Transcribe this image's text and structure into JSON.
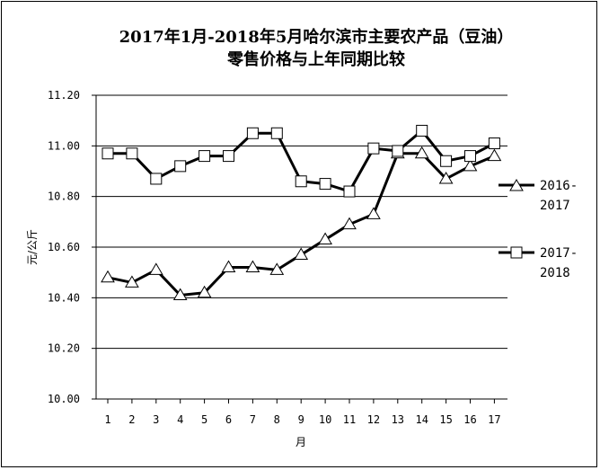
{
  "chart_data": {
    "type": "line",
    "title_line1": "2017年1月-2018年5月哈尔滨市主要农产品（豆油）",
    "title_line2": "零售价格与上年同期比较",
    "xlabel": "月",
    "ylabel": "元/公斤",
    "ylim": [
      10.0,
      11.2
    ],
    "yticks": [
      "10.00",
      "10.20",
      "10.40",
      "10.60",
      "10.80",
      "11.00",
      "11.20"
    ],
    "categories": [
      "1",
      "2",
      "3",
      "4",
      "5",
      "6",
      "7",
      "8",
      "9",
      "10",
      "11",
      "12",
      "13",
      "14",
      "15",
      "16",
      "17"
    ],
    "grid": true,
    "legend_position": "right",
    "series": [
      {
        "name_line1": "2016-",
        "name_line2": "2017",
        "marker": "triangle",
        "values": [
          10.48,
          10.46,
          10.51,
          10.41,
          10.42,
          10.52,
          10.52,
          10.51,
          10.57,
          10.63,
          10.69,
          10.73,
          10.97,
          10.97,
          10.87,
          10.92,
          10.96
        ]
      },
      {
        "name_line1": "2017-",
        "name_line2": "2018",
        "marker": "square",
        "values": [
          10.97,
          10.97,
          10.87,
          10.92,
          10.96,
          10.96,
          11.05,
          11.05,
          10.86,
          10.85,
          10.82,
          10.99,
          10.98,
          11.06,
          10.94,
          10.96,
          11.01
        ]
      }
    ]
  }
}
